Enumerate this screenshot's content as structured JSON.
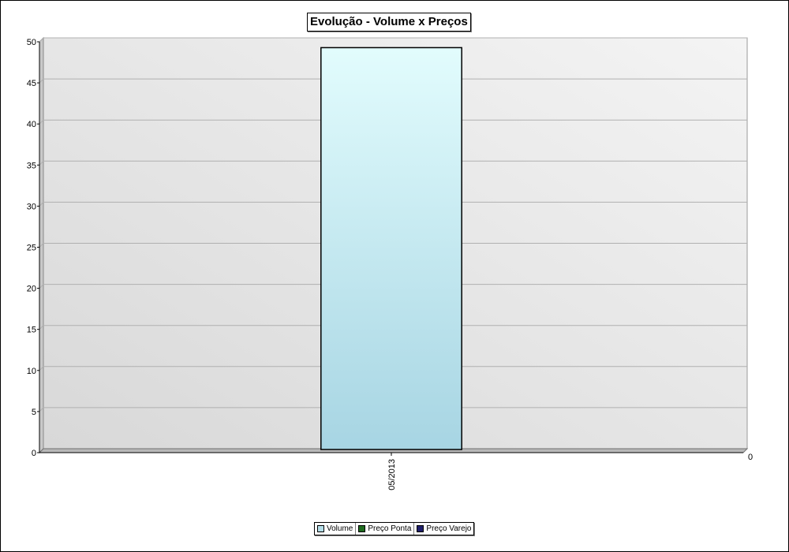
{
  "chart_data": {
    "type": "bar",
    "title": "Evolução - Volume x Preços",
    "categories": [
      "05/2013"
    ],
    "series": [
      {
        "name": "Volume",
        "values": [
          49
        ],
        "color": "#b4dde8"
      },
      {
        "name": "Preço Ponta",
        "values": [
          null
        ],
        "color": "#1f6b1f"
      },
      {
        "name": "Preço Varejo",
        "values": [
          null
        ],
        "color": "#1f1f6b"
      }
    ],
    "ylim": [
      0,
      50
    ],
    "yticks": [
      0,
      5,
      10,
      15,
      20,
      25,
      30,
      35,
      40,
      45,
      50
    ],
    "ytick_labels": [
      "0",
      "5",
      "10",
      "15",
      "20",
      "25",
      "30",
      "35",
      "40",
      "45",
      "50"
    ],
    "secondary_axis_label": "0",
    "grid": true,
    "legend_position": "bottom"
  }
}
